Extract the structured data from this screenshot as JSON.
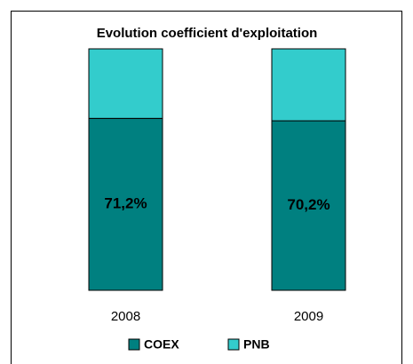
{
  "chart_data": {
    "type": "stacked_bar",
    "title": "Evolution coefficient d'exploitation",
    "categories": [
      "2008",
      "2009"
    ],
    "ylim": [
      0,
      100
    ],
    "series": [
      {
        "name": "COEX",
        "color": "#008080",
        "values": [
          71.2,
          70.2
        ],
        "value_labels": [
          "71,2%",
          "70,2%"
        ]
      },
      {
        "name": "PNB",
        "color": "#33cccc",
        "values": [
          28.8,
          29.8
        ]
      }
    ],
    "legend": "bottom"
  }
}
